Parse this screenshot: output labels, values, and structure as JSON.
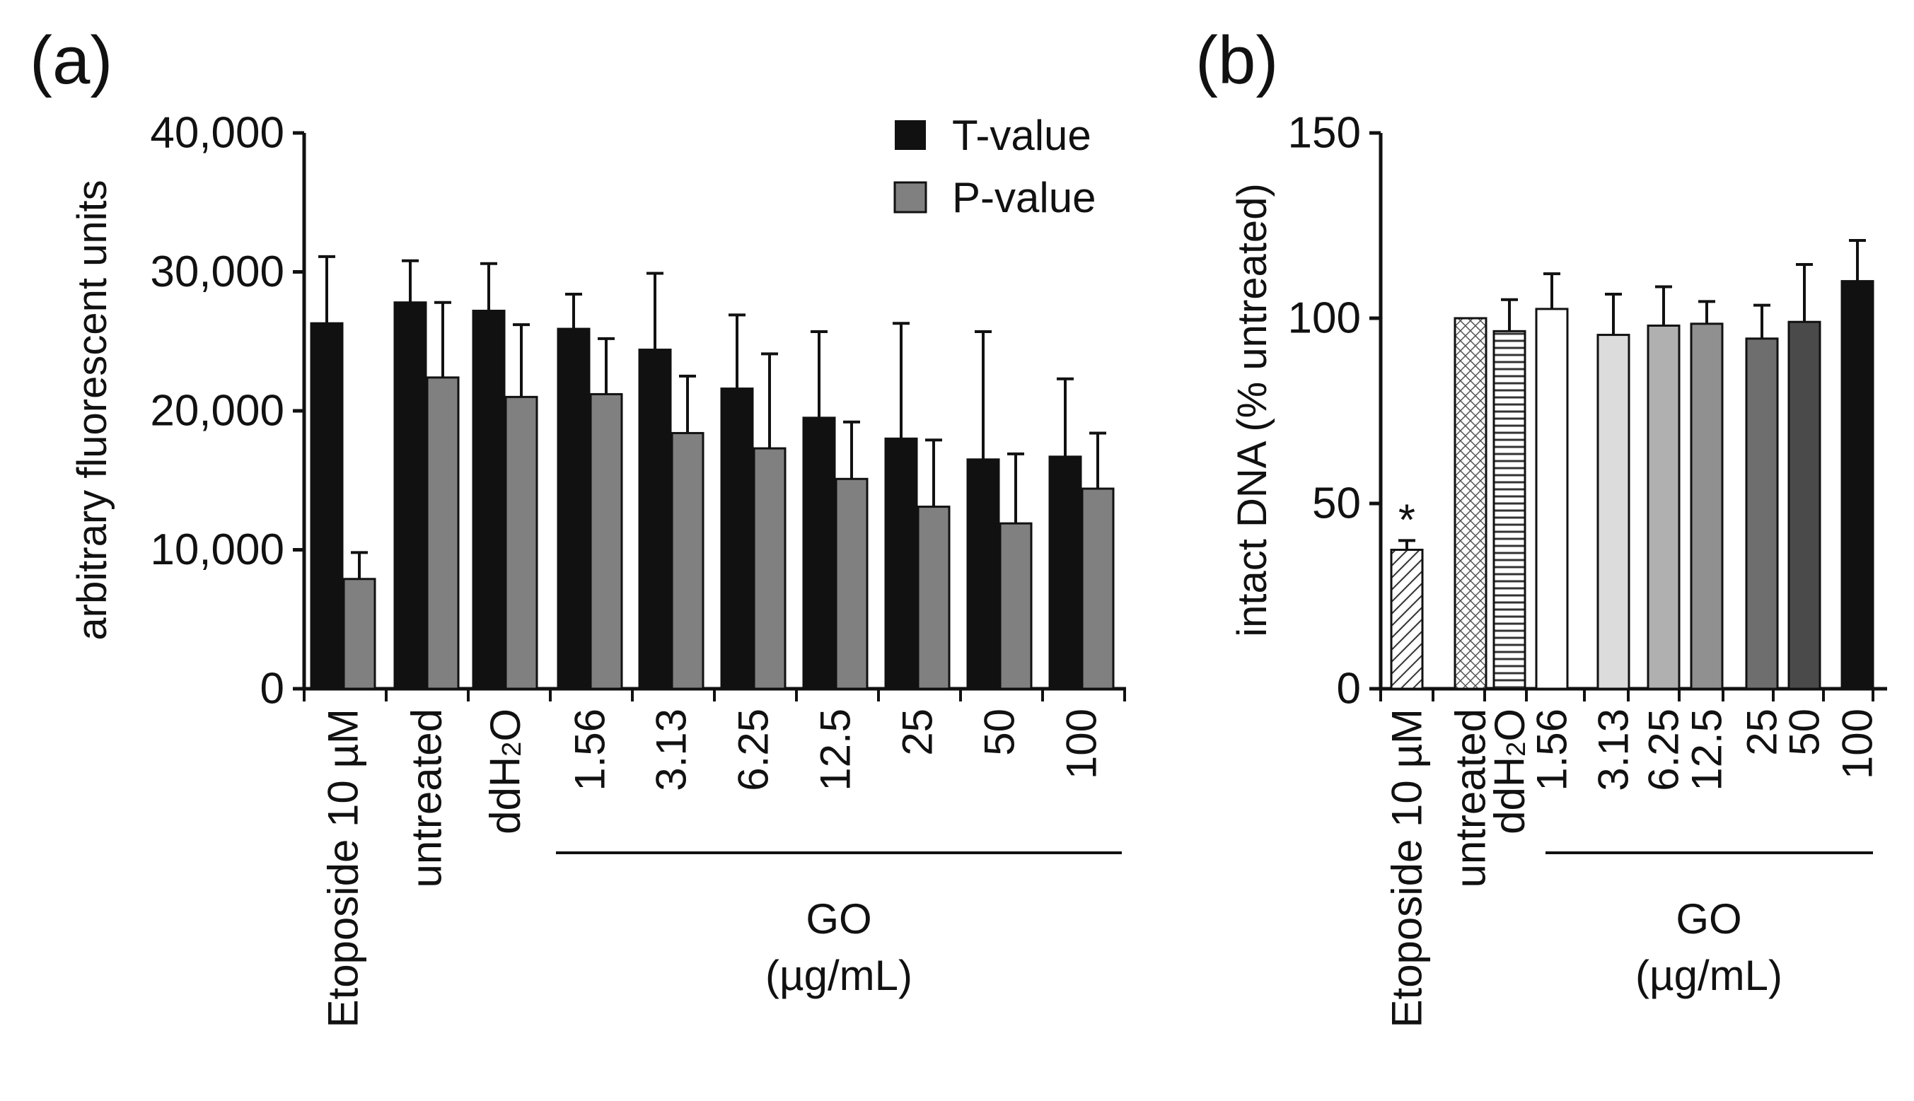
{
  "panels": {
    "a": {
      "label": "(a)"
    },
    "b": {
      "label": "(b)"
    }
  },
  "chart_data": [
    {
      "type": "bar",
      "panel": "a",
      "ylabel": "arbitrary fluorescent units",
      "ylim": [
        0,
        40000
      ],
      "yticks": [
        0,
        10000,
        20000,
        30000,
        40000
      ],
      "ytick_labels": [
        "0",
        "10,000",
        "20,000",
        "30,000",
        "40,000"
      ],
      "categories": [
        "Etoposide 10 µM",
        "untreated",
        "ddH₂O",
        "1.56",
        "3.13",
        "6.25",
        "12.5",
        "25",
        "50",
        "100"
      ],
      "series": [
        {
          "name": "T-value",
          "color": "#111111",
          "values": [
            26300,
            27800,
            27200,
            25900,
            24400,
            21600,
            19500,
            18000,
            16500,
            16700
          ],
          "errors": [
            4800,
            3000,
            3400,
            2500,
            5500,
            5300,
            6200,
            8300,
            9200,
            5600
          ]
        },
        {
          "name": "P-value",
          "color": "#808080",
          "values": [
            7900,
            22400,
            21000,
            21200,
            18400,
            17300,
            15100,
            13100,
            11900,
            14400
          ],
          "errors": [
            1900,
            5400,
            5200,
            4000,
            4100,
            6800,
            4100,
            4800,
            5000,
            4000
          ]
        }
      ],
      "legend": {
        "position": "top-right",
        "entries": [
          "T-value",
          "P-value"
        ]
      },
      "group": {
        "label_line1": "GO",
        "label_line2": "(µg/mL)",
        "covers": [
          "1.56",
          "3.13",
          "6.25",
          "12.5",
          "25",
          "50",
          "100"
        ]
      }
    },
    {
      "type": "bar",
      "panel": "b",
      "ylabel": "intact DNA (% untreated)",
      "ylim": [
        0,
        150
      ],
      "yticks": [
        0,
        50,
        100,
        150
      ],
      "ytick_labels": [
        "0",
        "50",
        "100",
        "150"
      ],
      "categories": [
        "Etoposide 10 µM",
        "untreated",
        "ddH₂O",
        "1.56",
        "3.13",
        "6.25",
        "12.5",
        "25",
        "50",
        "100"
      ],
      "values": [
        37.5,
        100,
        96.5,
        102.5,
        95.5,
        98,
        98.5,
        94.5,
        99,
        110
      ],
      "errors": [
        2.5,
        0,
        8.5,
        9.5,
        11,
        10.5,
        6,
        9,
        15.5,
        11
      ],
      "fills": [
        "diag-hatch",
        "crosshatch",
        "horizontal-lines",
        "#ffffff",
        "#dcdcdc",
        "#b0b0b0",
        "#909090",
        "#6e6e6e",
        "#4a4a4a",
        "#111111"
      ],
      "annotations": [
        {
          "category": "Etoposide 10 µM",
          "text": "*"
        }
      ],
      "group": {
        "label_line1": "GO",
        "label_line2": "(µg/mL)",
        "covers": [
          "1.56",
          "3.13",
          "6.25",
          "12.5",
          "25",
          "50",
          "100"
        ]
      }
    }
  ]
}
